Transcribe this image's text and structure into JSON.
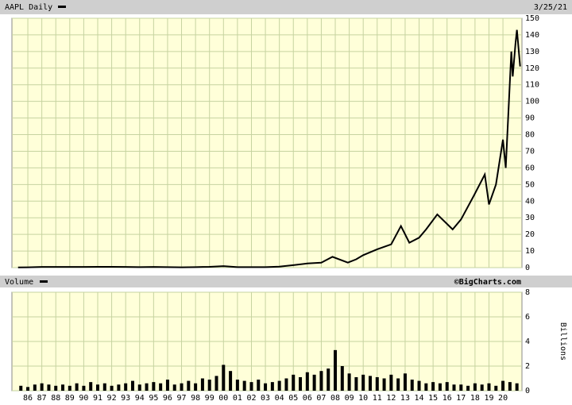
{
  "chart_data": [
    {
      "type": "line",
      "title": "AAPL Daily",
      "date": "3/25/21",
      "x": [
        1985.3,
        1986.0,
        1987.0,
        1988.0,
        1989.0,
        1990.0,
        1991.0,
        1992.0,
        1993.0,
        1994.0,
        1995.0,
        1996.0,
        1997.0,
        1998.0,
        1999.0,
        2000.0,
        2000.7,
        2001.0,
        2002.0,
        2003.0,
        2004.0,
        2005.0,
        2006.0,
        2007.0,
        2007.8,
        2008.9,
        2009.5,
        2010.0,
        2011.0,
        2012.0,
        2012.7,
        2013.3,
        2014.0,
        2014.5,
        2015.3,
        2016.4,
        2017.0,
        2017.9,
        2018.7,
        2019.0,
        2019.5,
        2020.0,
        2020.2,
        2020.6,
        2020.7,
        2020.9,
        2021.0,
        2021.23
      ],
      "series": [
        {
          "name": "AAPL",
          "color": "#000000",
          "values": [
            0.1,
            0.2,
            0.4,
            0.4,
            0.4,
            0.4,
            0.5,
            0.5,
            0.4,
            0.3,
            0.4,
            0.3,
            0.2,
            0.3,
            0.5,
            0.9,
            0.5,
            0.3,
            0.3,
            0.3,
            0.6,
            1.5,
            2.5,
            3.0,
            6.5,
            3.0,
            5.0,
            7.5,
            11.0,
            14.0,
            25.0,
            15.0,
            18.0,
            23.0,
            32.0,
            23.0,
            29.0,
            43.0,
            56.0,
            38.0,
            50.0,
            77.0,
            60.0,
            130.0,
            115.0,
            135.0,
            143.0,
            121.0
          ]
        }
      ],
      "ylim": [
        0,
        150
      ],
      "yticks": [
        0,
        10,
        20,
        30,
        40,
        50,
        60,
        70,
        80,
        90,
        100,
        110,
        120,
        130,
        140,
        150
      ],
      "xlim": [
        1984.86,
        2021.36
      ],
      "grid": true
    },
    {
      "type": "bar",
      "title": "Volume",
      "source": "©BigCharts.com",
      "ylabel": "Billions",
      "color": "#000000",
      "x": [
        1985.5,
        1986.0,
        1986.5,
        1987.0,
        1987.5,
        1988.0,
        1988.5,
        1989.0,
        1989.5,
        1990.0,
        1990.5,
        1991.0,
        1991.5,
        1992.0,
        1992.5,
        1993.0,
        1993.5,
        1994.0,
        1994.5,
        1995.0,
        1995.5,
        1996.0,
        1996.5,
        1997.0,
        1997.5,
        1998.0,
        1998.5,
        1999.0,
        1999.5,
        2000.0,
        2000.5,
        2001.0,
        2001.5,
        2002.0,
        2002.5,
        2003.0,
        2003.5,
        2004.0,
        2004.5,
        2005.0,
        2005.5,
        2006.0,
        2006.5,
        2007.0,
        2007.5,
        2008.0,
        2008.5,
        2009.0,
        2009.5,
        2010.0,
        2010.5,
        2011.0,
        2011.5,
        2012.0,
        2012.5,
        2013.0,
        2013.5,
        2014.0,
        2014.5,
        2015.0,
        2015.5,
        2016.0,
        2016.5,
        2017.0,
        2017.5,
        2018.0,
        2018.5,
        2019.0,
        2019.5,
        2020.0,
        2020.5,
        2021.0
      ],
      "values": [
        0.4,
        0.3,
        0.5,
        0.6,
        0.5,
        0.4,
        0.5,
        0.4,
        0.6,
        0.4,
        0.7,
        0.5,
        0.6,
        0.4,
        0.5,
        0.6,
        0.8,
        0.5,
        0.6,
        0.7,
        0.6,
        0.9,
        0.5,
        0.6,
        0.8,
        0.6,
        1.0,
        0.9,
        1.2,
        2.1,
        1.6,
        0.9,
        0.8,
        0.7,
        0.9,
        0.6,
        0.7,
        0.8,
        1.0,
        1.3,
        1.1,
        1.5,
        1.3,
        1.6,
        1.8,
        3.3,
        2.0,
        1.4,
        1.1,
        1.3,
        1.2,
        1.1,
        1.0,
        1.3,
        1.0,
        1.4,
        0.9,
        0.8,
        0.6,
        0.7,
        0.6,
        0.7,
        0.5,
        0.5,
        0.4,
        0.6,
        0.5,
        0.6,
        0.4,
        0.8,
        0.7,
        0.6
      ],
      "ylim": [
        0,
        8
      ],
      "yticks": [
        0,
        2,
        4,
        6,
        8
      ],
      "xlim": [
        1984.86,
        2021.36
      ],
      "xticks": [
        {
          "value": 1986,
          "label": "86"
        },
        {
          "value": 1987,
          "label": "87"
        },
        {
          "value": 1988,
          "label": "88"
        },
        {
          "value": 1989,
          "label": "89"
        },
        {
          "value": 1990,
          "label": "90"
        },
        {
          "value": 1991,
          "label": "91"
        },
        {
          "value": 1992,
          "label": "92"
        },
        {
          "value": 1993,
          "label": "93"
        },
        {
          "value": 1994,
          "label": "94"
        },
        {
          "value": 1995,
          "label": "95"
        },
        {
          "value": 1996,
          "label": "96"
        },
        {
          "value": 1997,
          "label": "97"
        },
        {
          "value": 1998,
          "label": "98"
        },
        {
          "value": 1999,
          "label": "99"
        },
        {
          "value": 2000,
          "label": "00"
        },
        {
          "value": 2001,
          "label": "01"
        },
        {
          "value": 2002,
          "label": "02"
        },
        {
          "value": 2003,
          "label": "03"
        },
        {
          "value": 2004,
          "label": "04"
        },
        {
          "value": 2005,
          "label": "05"
        },
        {
          "value": 2006,
          "label": "06"
        },
        {
          "value": 2007,
          "label": "07"
        },
        {
          "value": 2008,
          "label": "08"
        },
        {
          "value": 2009,
          "label": "09"
        },
        {
          "value": 2010,
          "label": "10"
        },
        {
          "value": 2011,
          "label": "11"
        },
        {
          "value": 2012,
          "label": "12"
        },
        {
          "value": 2013,
          "label": "13"
        },
        {
          "value": 2014,
          "label": "14"
        },
        {
          "value": 2015,
          "label": "15"
        },
        {
          "value": 2016,
          "label": "16"
        },
        {
          "value": 2017,
          "label": "17"
        },
        {
          "value": 2018,
          "label": "18"
        },
        {
          "value": 2019,
          "label": "19"
        },
        {
          "value": 2020,
          "label": "20"
        }
      ],
      "grid": true
    }
  ]
}
